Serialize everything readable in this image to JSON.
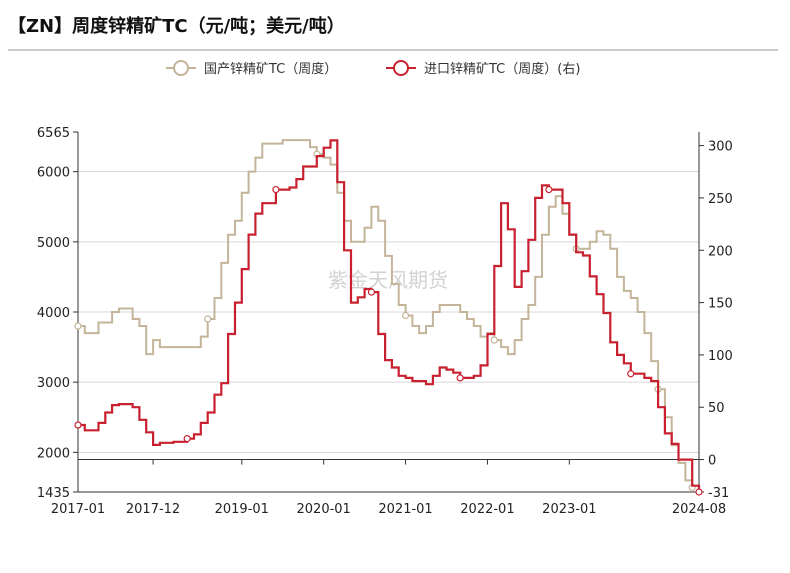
{
  "header": {
    "title": "【ZN】周度锌精矿TC（元/吨；美元/吨）"
  },
  "watermark": "紫金天风期货",
  "chart_data": {
    "type": "line",
    "title": "【ZN】周度锌精矿TC（元/吨；美元/吨）",
    "x_ticks": [
      "2017-01",
      "2017-12",
      "2019-01",
      "2020-01",
      "2021-01",
      "2022-01",
      "2023-01",
      "2024-08"
    ],
    "x_range": [
      "2017-01",
      "2024-08"
    ],
    "y_left": {
      "ticks": [
        "1435",
        "2000",
        "3000",
        "4000",
        "5000",
        "6000",
        "6565"
      ],
      "range": [
        1435,
        6565
      ]
    },
    "y_right": {
      "ticks": [
        "-31",
        "0",
        "50",
        "100",
        "150",
        "200",
        "250",
        "300"
      ],
      "range": [
        -31,
        313
      ]
    },
    "grid": true,
    "legend_position": "top",
    "series": [
      {
        "name": "国产锌精矿TC（周度）",
        "axis": "left",
        "color": "#c4b49a",
        "step": true,
        "points": [
          [
            "2017-01",
            3800
          ],
          [
            "2017-02",
            3700
          ],
          [
            "2017-04",
            3850
          ],
          [
            "2017-06",
            4000
          ],
          [
            "2017-07",
            4050
          ],
          [
            "2017-09",
            3900
          ],
          [
            "2017-10",
            3800
          ],
          [
            "2017-11",
            3400
          ],
          [
            "2017-12",
            3600
          ],
          [
            "2018-01",
            3500
          ],
          [
            "2018-06",
            3500
          ],
          [
            "2018-07",
            3650
          ],
          [
            "2018-08",
            3900
          ],
          [
            "2018-09",
            4200
          ],
          [
            "2018-10",
            4700
          ],
          [
            "2018-11",
            5100
          ],
          [
            "2018-12",
            5300
          ],
          [
            "2019-01",
            5700
          ],
          [
            "2019-02",
            6000
          ],
          [
            "2019-03",
            6200
          ],
          [
            "2019-04",
            6400
          ],
          [
            "2019-07",
            6450
          ],
          [
            "2019-09",
            6450
          ],
          [
            "2019-11",
            6350
          ],
          [
            "2019-12",
            6250
          ],
          [
            "2020-01",
            6200
          ],
          [
            "2020-02",
            6100
          ],
          [
            "2020-03",
            5700
          ],
          [
            "2020-04",
            5300
          ],
          [
            "2020-05",
            5000
          ],
          [
            "2020-07",
            5200
          ],
          [
            "2020-08",
            5500
          ],
          [
            "2020-09",
            5300
          ],
          [
            "2020-10",
            4800
          ],
          [
            "2020-11",
            4400
          ],
          [
            "2020-12",
            4100
          ],
          [
            "2021-01",
            3950
          ],
          [
            "2021-02",
            3800
          ],
          [
            "2021-03",
            3700
          ],
          [
            "2021-04",
            3800
          ],
          [
            "2021-05",
            4000
          ],
          [
            "2021-06",
            4100
          ],
          [
            "2021-08",
            4100
          ],
          [
            "2021-09",
            4000
          ],
          [
            "2021-10",
            3900
          ],
          [
            "2021-11",
            3800
          ],
          [
            "2021-12",
            3650
          ],
          [
            "2022-01",
            3700
          ],
          [
            "2022-02",
            3600
          ],
          [
            "2022-03",
            3500
          ],
          [
            "2022-04",
            3400
          ],
          [
            "2022-05",
            3600
          ],
          [
            "2022-06",
            3900
          ],
          [
            "2022-07",
            4100
          ],
          [
            "2022-08",
            4500
          ],
          [
            "2022-09",
            5100
          ],
          [
            "2022-10",
            5500
          ],
          [
            "2022-11",
            5650
          ],
          [
            "2022-12",
            5400
          ],
          [
            "2023-01",
            5100
          ],
          [
            "2023-02",
            4900
          ],
          [
            "2023-03",
            4900
          ],
          [
            "2023-04",
            5000
          ],
          [
            "2023-05",
            5150
          ],
          [
            "2023-06",
            5100
          ],
          [
            "2023-07",
            4900
          ],
          [
            "2023-08",
            4500
          ],
          [
            "2023-09",
            4300
          ],
          [
            "2023-10",
            4200
          ],
          [
            "2023-11",
            4000
          ],
          [
            "2023-12",
            3700
          ],
          [
            "2024-01",
            3300
          ],
          [
            "2024-02",
            2900
          ],
          [
            "2024-03",
            2500
          ],
          [
            "2024-04",
            2100
          ],
          [
            "2024-05",
            1850
          ],
          [
            "2024-06",
            1600
          ],
          [
            "2024-07",
            1500
          ]
        ]
      },
      {
        "name": "进口锌精矿TC（周度）(右)",
        "axis": "right",
        "color": "#c8202f",
        "step": true,
        "points": [
          [
            "2017-01",
            33
          ],
          [
            "2017-02",
            28
          ],
          [
            "2017-04",
            35
          ],
          [
            "2017-05",
            45
          ],
          [
            "2017-06",
            52
          ],
          [
            "2017-07",
            53
          ],
          [
            "2017-09",
            50
          ],
          [
            "2017-10",
            38
          ],
          [
            "2017-11",
            26
          ],
          [
            "2017-12",
            14
          ],
          [
            "2018-01",
            16
          ],
          [
            "2018-03",
            17
          ],
          [
            "2018-05",
            20
          ],
          [
            "2018-06",
            24
          ],
          [
            "2018-07",
            35
          ],
          [
            "2018-08",
            45
          ],
          [
            "2018-09",
            62
          ],
          [
            "2018-10",
            73
          ],
          [
            "2018-11",
            120
          ],
          [
            "2018-12",
            150
          ],
          [
            "2019-01",
            182
          ],
          [
            "2019-02",
            215
          ],
          [
            "2019-03",
            235
          ],
          [
            "2019-04",
            245
          ],
          [
            "2019-06",
            258
          ],
          [
            "2019-08",
            260
          ],
          [
            "2019-09",
            268
          ],
          [
            "2019-10",
            280
          ],
          [
            "2019-12",
            290
          ],
          [
            "2020-01",
            298
          ],
          [
            "2020-02",
            305
          ],
          [
            "2020-03",
            265
          ],
          [
            "2020-04",
            200
          ],
          [
            "2020-05",
            150
          ],
          [
            "2020-06",
            155
          ],
          [
            "2020-07",
            163
          ],
          [
            "2020-08",
            160
          ],
          [
            "2020-09",
            120
          ],
          [
            "2020-10",
            95
          ],
          [
            "2020-11",
            88
          ],
          [
            "2020-12",
            80
          ],
          [
            "2021-01",
            78
          ],
          [
            "2021-02",
            75
          ],
          [
            "2021-04",
            72
          ],
          [
            "2021-05",
            80
          ],
          [
            "2021-06",
            88
          ],
          [
            "2021-07",
            86
          ],
          [
            "2021-08",
            83
          ],
          [
            "2021-09",
            78
          ],
          [
            "2021-11",
            80
          ],
          [
            "2021-12",
            90
          ],
          [
            "2022-01",
            120
          ],
          [
            "2022-02",
            185
          ],
          [
            "2022-03",
            245
          ],
          [
            "2022-04",
            220
          ],
          [
            "2022-05",
            165
          ],
          [
            "2022-06",
            180
          ],
          [
            "2022-07",
            210
          ],
          [
            "2022-08",
            250
          ],
          [
            "2022-09",
            262
          ],
          [
            "2022-10",
            258
          ],
          [
            "2022-11",
            258
          ],
          [
            "2022-12",
            245
          ],
          [
            "2023-01",
            215
          ],
          [
            "2023-02",
            198
          ],
          [
            "2023-03",
            195
          ],
          [
            "2023-04",
            175
          ],
          [
            "2023-05",
            158
          ],
          [
            "2023-06",
            140
          ],
          [
            "2023-07",
            112
          ],
          [
            "2023-08",
            100
          ],
          [
            "2023-09",
            92
          ],
          [
            "2023-10",
            82
          ],
          [
            "2023-12",
            78
          ],
          [
            "2024-01",
            75
          ],
          [
            "2024-02",
            50
          ],
          [
            "2024-03",
            25
          ],
          [
            "2024-04",
            15
          ],
          [
            "2024-05",
            0
          ],
          [
            "2024-07",
            -25
          ],
          [
            "2024-08",
            -31
          ]
        ]
      }
    ]
  }
}
